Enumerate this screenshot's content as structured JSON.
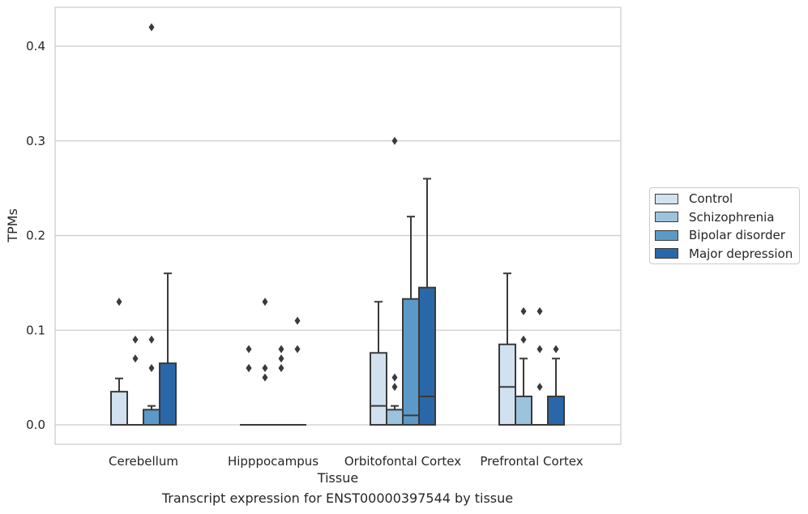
{
  "chart_data": {
    "type": "box",
    "title": "Transcript expression for ENST00000397544 by tissue",
    "xlabel": "Tissue",
    "ylabel": "TPMs",
    "ylim": [
      -0.02,
      0.442
    ],
    "yticks": [
      "0.0",
      "0.1",
      "0.2",
      "0.3",
      "0.4"
    ],
    "ytick_values": [
      0.0,
      0.1,
      0.2,
      0.3,
      0.4
    ],
    "grid": "horizontal",
    "legend_position": "right",
    "categories": [
      "Cerebellum",
      "Hipppocampus",
      "Orbitofontal Cortex",
      "Prefrontal Cortex"
    ],
    "series": [
      {
        "name": "Control",
        "color": "#d1e1f0",
        "boxes": [
          {
            "q1": 0.0,
            "median": 0.0,
            "q3": 0.035,
            "whisker_low": 0.0,
            "whisker_high": 0.049,
            "outliers": [
              0.13
            ]
          },
          {
            "q1": 0.0,
            "median": 0.0,
            "q3": 0.0,
            "whisker_low": 0.0,
            "whisker_high": 0.0,
            "outliers": [
              0.06,
              0.06,
              0.08
            ]
          },
          {
            "q1": 0.0,
            "median": 0.02,
            "q3": 0.076,
            "whisker_low": 0.0,
            "whisker_high": 0.13,
            "outliers": []
          },
          {
            "q1": 0.0,
            "median": 0.04,
            "q3": 0.085,
            "whisker_low": 0.0,
            "whisker_high": 0.16,
            "outliers": []
          }
        ]
      },
      {
        "name": "Schizophrenia",
        "color": "#9cc3dd",
        "boxes": [
          {
            "q1": 0.0,
            "median": 0.0,
            "q3": 0.0,
            "whisker_low": 0.0,
            "whisker_high": 0.0,
            "outliers": [
              0.07,
              0.09
            ]
          },
          {
            "q1": 0.0,
            "median": 0.0,
            "q3": 0.0,
            "whisker_low": 0.0,
            "whisker_high": 0.0,
            "outliers": [
              0.05,
              0.06,
              0.13
            ]
          },
          {
            "q1": 0.0,
            "median": 0.0,
            "q3": 0.016,
            "whisker_low": 0.0,
            "whisker_high": 0.02,
            "outliers": [
              0.04,
              0.05,
              0.3
            ]
          },
          {
            "q1": 0.0,
            "median": 0.0,
            "q3": 0.03,
            "whisker_low": 0.0,
            "whisker_high": 0.07,
            "outliers": [
              0.09,
              0.12
            ]
          }
        ]
      },
      {
        "name": "Bipolar disorder",
        "color": "#5b9ac8",
        "boxes": [
          {
            "q1": 0.0,
            "median": 0.0,
            "q3": 0.016,
            "whisker_low": 0.0,
            "whisker_high": 0.02,
            "outliers": [
              0.06,
              0.09,
              0.42
            ]
          },
          {
            "q1": 0.0,
            "median": 0.0,
            "q3": 0.0,
            "whisker_low": 0.0,
            "whisker_high": 0.0,
            "outliers": [
              0.06,
              0.07,
              0.08
            ]
          },
          {
            "q1": 0.0,
            "median": 0.01,
            "q3": 0.133,
            "whisker_low": 0.0,
            "whisker_high": 0.22,
            "outliers": []
          },
          {
            "q1": 0.0,
            "median": 0.0,
            "q3": 0.0,
            "whisker_low": 0.0,
            "whisker_high": 0.0,
            "outliers": [
              0.04,
              0.08,
              0.12
            ]
          }
        ]
      },
      {
        "name": "Major depression",
        "color": "#2a67a8",
        "boxes": [
          {
            "q1": 0.0,
            "median": 0.0,
            "q3": 0.065,
            "whisker_low": 0.0,
            "whisker_high": 0.16,
            "outliers": []
          },
          {
            "q1": 0.0,
            "median": 0.0,
            "q3": 0.0,
            "whisker_low": 0.0,
            "whisker_high": 0.0,
            "outliers": [
              0.08,
              0.11
            ]
          },
          {
            "q1": 0.0,
            "median": 0.03,
            "q3": 0.145,
            "whisker_low": 0.0,
            "whisker_high": 0.26,
            "outliers": []
          },
          {
            "q1": 0.0,
            "median": 0.0,
            "q3": 0.03,
            "whisker_low": 0.0,
            "whisker_high": 0.07,
            "outliers": [
              0.08
            ]
          }
        ]
      }
    ]
  }
}
